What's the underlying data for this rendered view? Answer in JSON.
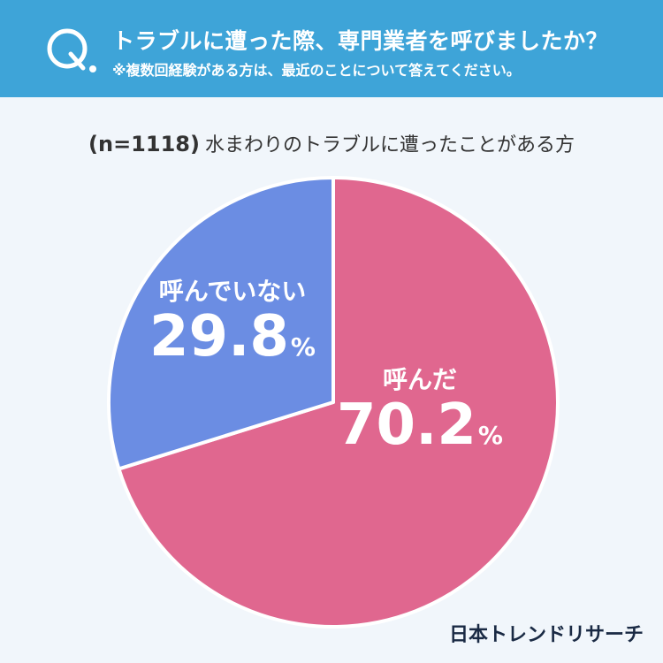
{
  "header": {
    "q_letter": "Q.",
    "title": "トラブルに遭った際、専門業者を呼びましたか？",
    "note": "※複数回経験がある方は、最近のことについて答えてください。"
  },
  "subtitle": {
    "n": "(n=1118)",
    "text": "水まわりのトラブルに遭ったことがある方"
  },
  "chart_data": {
    "type": "pie",
    "slices": [
      {
        "label": "呼んだ",
        "value": 70.2,
        "display": "70.2",
        "color": "#e0678f"
      },
      {
        "label": "呼んでいない",
        "value": 29.8,
        "display": "29.8",
        "color": "#6b8de3"
      }
    ],
    "unit": "%",
    "start": "12 o'clock",
    "direction": "clockwise"
  },
  "logo": "日本トレンドリサーチ"
}
